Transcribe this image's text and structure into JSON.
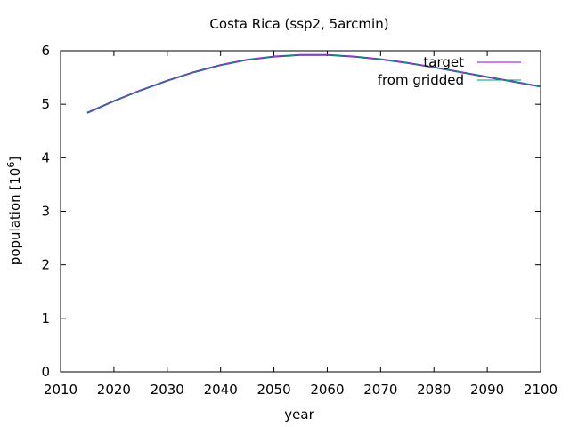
{
  "chart_data": {
    "type": "line",
    "title": "Costa Rica (ssp2, 5arcmin)",
    "xlabel": "year",
    "ylabel": "population [10",
    "ylabel_exponent": "6",
    "ylabel_suffix": "]",
    "xlim": [
      2010,
      2100
    ],
    "ylim": [
      0,
      6
    ],
    "xticks": [
      2010,
      2020,
      2030,
      2040,
      2050,
      2060,
      2070,
      2080,
      2090,
      2100
    ],
    "yticks": [
      0,
      1,
      2,
      3,
      4,
      5,
      6
    ],
    "grid": false,
    "legend_position": "top-right",
    "x": [
      2015,
      2020,
      2025,
      2030,
      2035,
      2040,
      2045,
      2050,
      2055,
      2060,
      2065,
      2070,
      2075,
      2080,
      2085,
      2090,
      2095,
      2100
    ],
    "series": [
      {
        "name": "target",
        "color": "#9400d3",
        "values": [
          4.84,
          5.06,
          5.26,
          5.44,
          5.6,
          5.73,
          5.83,
          5.89,
          5.92,
          5.92,
          5.89,
          5.84,
          5.77,
          5.69,
          5.6,
          5.51,
          5.42,
          5.33
        ]
      },
      {
        "name": "from gridded",
        "color": "#009e73",
        "values": [
          4.84,
          5.06,
          5.26,
          5.44,
          5.6,
          5.73,
          5.83,
          5.89,
          5.92,
          5.92,
          5.89,
          5.84,
          5.77,
          5.69,
          5.6,
          5.51,
          5.42,
          5.33
        ]
      }
    ]
  }
}
